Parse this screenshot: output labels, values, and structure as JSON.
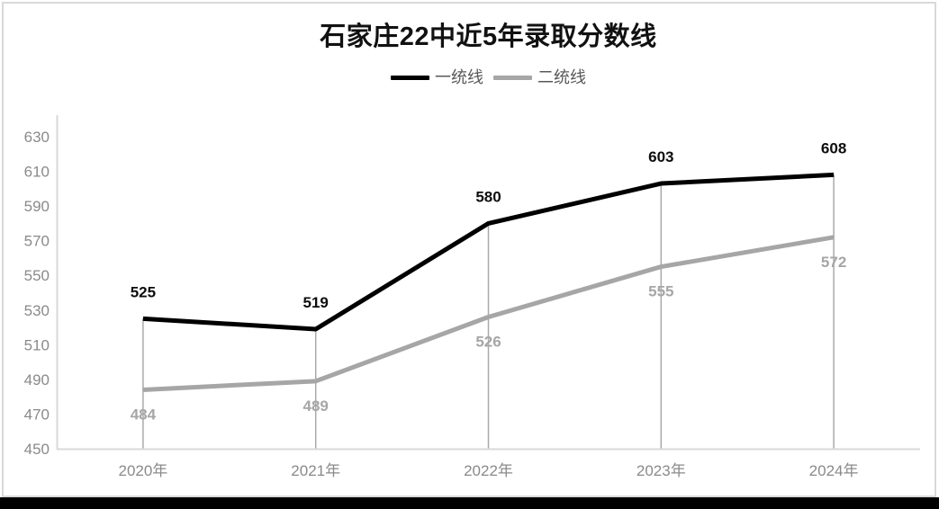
{
  "chart_data": {
    "type": "line",
    "title": "石家庄22中近5年录取分数线",
    "categories": [
      "2020年",
      "2021年",
      "2022年",
      "2023年",
      "2024年"
    ],
    "series": [
      {
        "name": "一统线",
        "values": [
          525,
          519,
          580,
          603,
          608
        ],
        "color": "#000000",
        "label_color": "#0d0d0d",
        "label_position": "above"
      },
      {
        "name": "二统线",
        "values": [
          484,
          489,
          526,
          555,
          572
        ],
        "color": "#a6a6a6",
        "label_color": "#a6a6a6",
        "label_position": "below"
      }
    ],
    "y_axis": {
      "min": 450,
      "max": 630,
      "tick_step": 20,
      "ticks": [
        450,
        470,
        490,
        510,
        530,
        550,
        570,
        590,
        610,
        630
      ]
    },
    "x_axis_label_suffix": "年",
    "legend_position": "top",
    "grid": false,
    "drop_lines": true,
    "colors": {
      "axis_line": "#d9d9d9",
      "tick_label": "#8a8a8a",
      "drop_line": "#a9a9a9",
      "title": "#111111",
      "legend_text": "#595959",
      "bottom_bar": "#000000",
      "card_border": "#d9d9d9",
      "background": "#ffffff"
    }
  }
}
